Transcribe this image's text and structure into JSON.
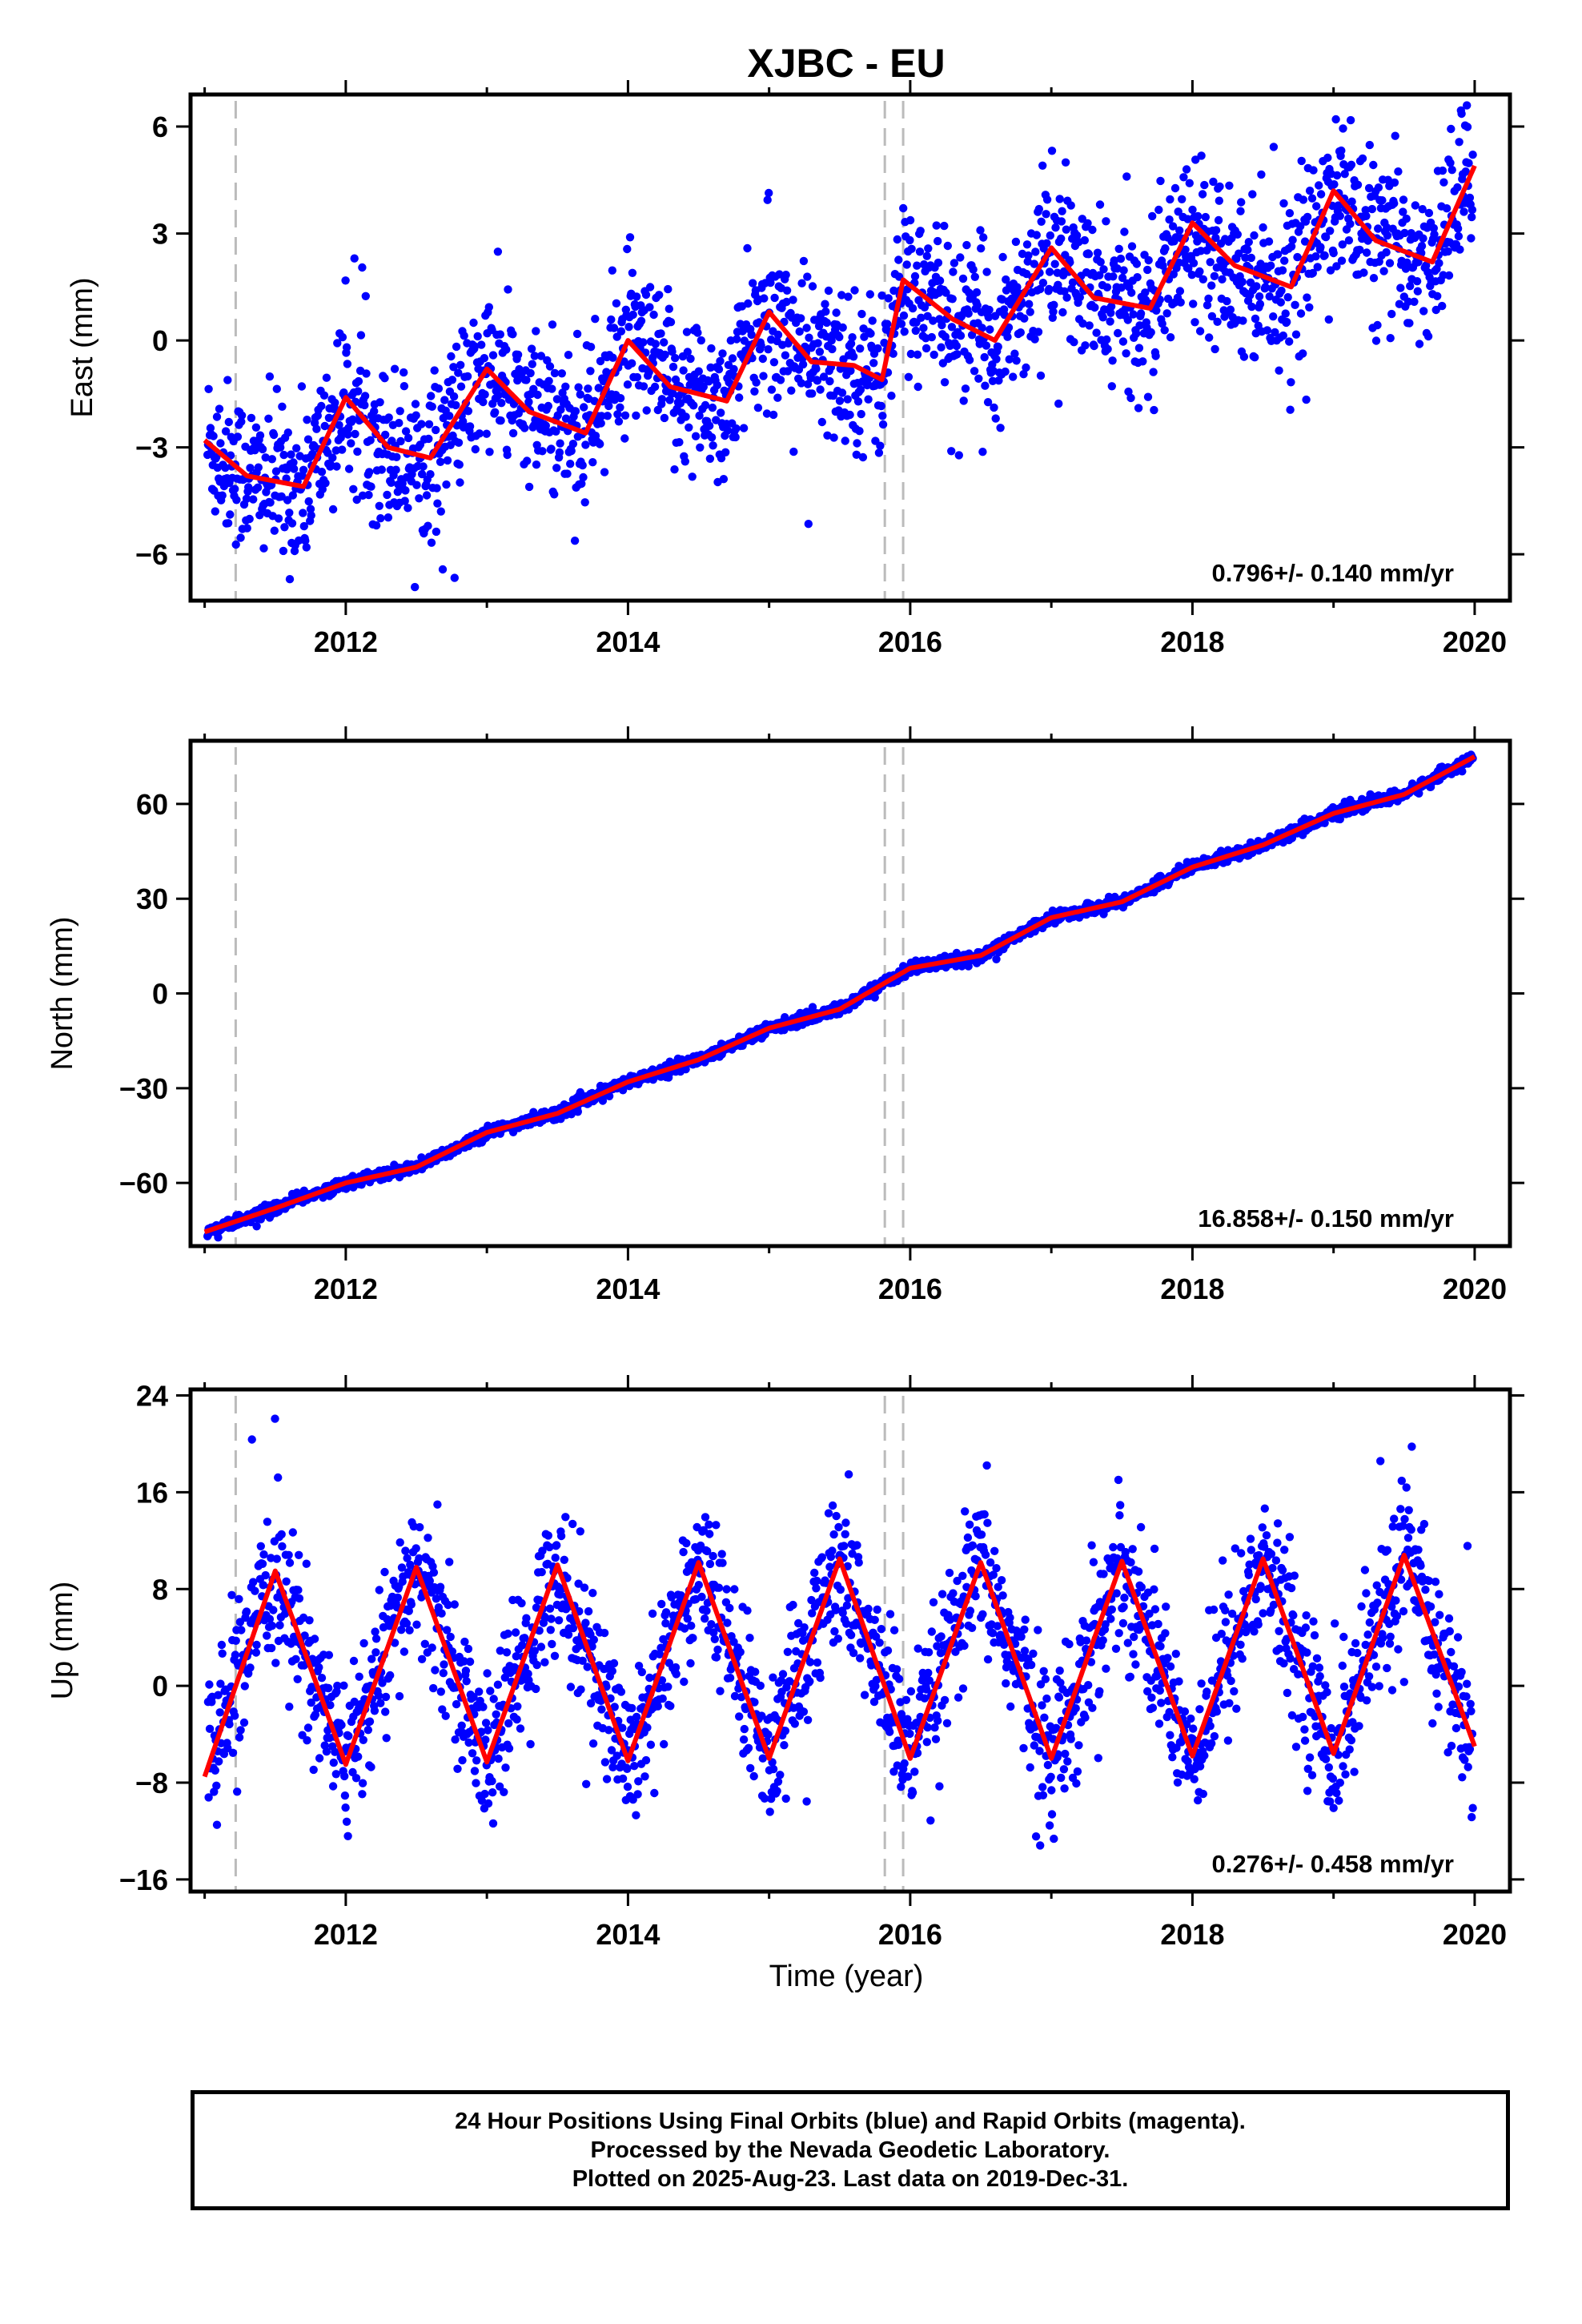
{
  "title": "XJBC - EU",
  "x_label": "Time (year)",
  "colors": {
    "points": "#0000ff",
    "fit": "#ff0000",
    "break_lines": "#bbbbbb"
  },
  "footer": {
    "line1": "24 Hour Positions Using Final Orbits (blue) and Rapid Orbits (magenta).",
    "line2": "Processed by the Nevada Geodetic Laboratory.",
    "line3": "Plotted on 2025-Aug-23. Last data on 2019-Dec-31."
  },
  "chart_data": [
    {
      "type": "scatter",
      "component": "east",
      "ylabel": "East (mm)",
      "xlim": [
        2010.9,
        2020.25
      ],
      "ylim": [
        -7.3,
        6.9
      ],
      "xticks": [
        2012,
        2014,
        2016,
        2018,
        2020
      ],
      "yticks": [
        -6,
        -3,
        0,
        3,
        6
      ],
      "rate_text": "0.796+/- 0.140 mm/yr",
      "rate": 0.796,
      "seasonal_amplitude": 1.0,
      "noise": 1.1,
      "break_years": [
        2011.22,
        2015.82,
        2015.95
      ],
      "fit_series": {
        "x": [
          2011.0,
          2011.3,
          2011.7,
          2012.0,
          2012.3,
          2012.6,
          2013.0,
          2013.3,
          2013.7,
          2014.0,
          2014.3,
          2014.7,
          2015.0,
          2015.3,
          2015.6,
          2015.8,
          2015.95,
          2016.3,
          2016.6,
          2017.0,
          2017.3,
          2017.7,
          2018.0,
          2018.3,
          2018.7,
          2019.0,
          2019.3,
          2019.7,
          2020.0
        ],
        "y": [
          -2.8,
          -3.8,
          -4.1,
          -1.6,
          -3.0,
          -3.3,
          -0.8,
          -2.0,
          -2.6,
          0.0,
          -1.3,
          -1.7,
          0.8,
          -0.6,
          -0.7,
          -1.1,
          1.7,
          0.6,
          0.0,
          2.6,
          1.2,
          0.9,
          3.3,
          2.1,
          1.5,
          4.2,
          2.8,
          2.2,
          4.9
        ]
      }
    },
    {
      "type": "scatter",
      "component": "north",
      "ylabel": "North (mm)",
      "xlim": [
        2010.9,
        2020.25
      ],
      "ylim": [
        -80,
        80
      ],
      "xticks": [
        2012,
        2014,
        2016,
        2018,
        2020
      ],
      "yticks": [
        -60,
        -30,
        0,
        30,
        60
      ],
      "rate_text": "16.858+/- 0.150 mm/yr",
      "rate": 16.858,
      "seasonal_amplitude": 1.5,
      "noise": 0.9,
      "break_years": [
        2011.22,
        2015.82,
        2015.95
      ],
      "fit_series": {
        "x": [
          2011.0,
          2011.5,
          2012.0,
          2012.5,
          2013.0,
          2013.5,
          2014.0,
          2014.5,
          2015.0,
          2015.5,
          2016.0,
          2016.5,
          2017.0,
          2017.5,
          2018.0,
          2018.5,
          2019.0,
          2019.5,
          2020.0
        ],
        "y": [
          -75.5,
          -68,
          -60,
          -55,
          -44,
          -38,
          -28,
          -21,
          -11,
          -5,
          8,
          12,
          24,
          29,
          40,
          47,
          57,
          63,
          75
        ]
      }
    },
    {
      "type": "scatter",
      "component": "up",
      "ylabel": "Up (mm)",
      "xlim": [
        2010.9,
        2020.25
      ],
      "ylim": [
        -17,
        24.5
      ],
      "xticks": [
        2012,
        2014,
        2016,
        2018,
        2020
      ],
      "yticks": [
        -16,
        -8,
        0,
        8,
        16,
        24
      ],
      "rate_text": "0.276+/- 0.458 mm/yr",
      "rate": 0.276,
      "seasonal_amplitude": 8.0,
      "noise": 3.0,
      "break_years": [
        2011.22,
        2015.82,
        2015.95
      ],
      "fit_series": {
        "x": [
          2011.0,
          2011.5,
          2012.0,
          2012.5,
          2013.0,
          2013.5,
          2014.0,
          2014.5,
          2015.0,
          2015.5,
          2016.0,
          2016.5,
          2017.0,
          2017.5,
          2018.0,
          2018.5,
          2019.0,
          2019.5,
          2020.0
        ],
        "y": [
          -7.5,
          9.5,
          -6.5,
          9.8,
          -6.3,
          10.0,
          -6.2,
          10.2,
          -6.0,
          10.5,
          -6.0,
          10.2,
          -6.0,
          10.3,
          -5.8,
          10.5,
          -5.6,
          10.8,
          -5.0
        ]
      }
    }
  ]
}
